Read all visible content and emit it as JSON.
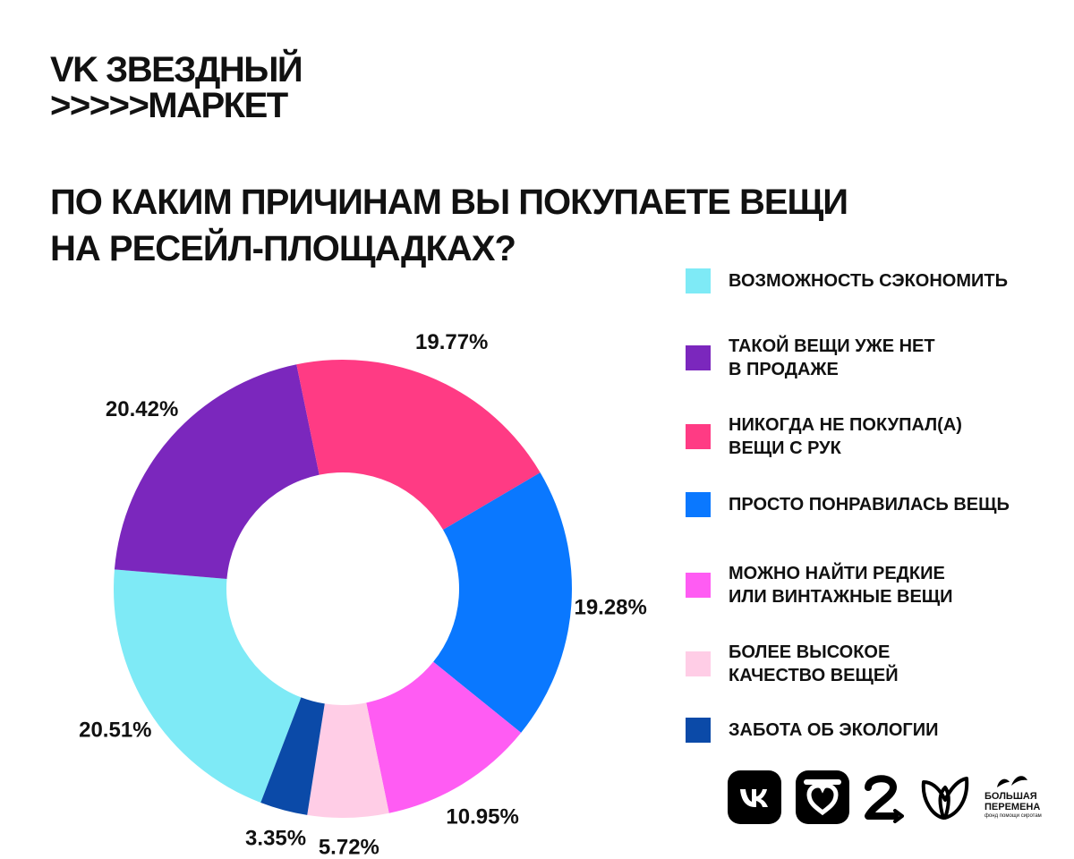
{
  "brand": {
    "line1": "VK ЗВЕЗДНЫЙ",
    "line2": ">>>>>МАРКЕТ"
  },
  "question": {
    "line1": "ПО КАКИМ ПРИЧИНАМ ВЫ ПОКУПАЕТЕ ВЕЩИ",
    "line2": "НА РЕСЕЙЛ-ПЛОЩАДКАХ?"
  },
  "chart_data": {
    "type": "pie",
    "donut": true,
    "title": "ПО КАКИМ ПРИЧИНАМ ВЫ ПОКУПАЕТЕ ВЕЩИ НА РЕСЕЙЛ-ПЛОЩАДКАХ?",
    "legend_position": "right",
    "slices": [
      {
        "label": [
          "ВОЗМОЖНОСТЬ СЭКОНОМИТЬ"
        ],
        "value": 20.51,
        "value_label": "20.51%",
        "color": "#7eeaf6"
      },
      {
        "label": [
          "ТАКОЙ ВЕЩИ УЖЕ НЕТ",
          "В ПРОДАЖЕ"
        ],
        "value": 20.42,
        "value_label": "20.42%",
        "color": "#7b27bd"
      },
      {
        "label": [
          "НИКОГДА НЕ ПОКУПАЛ(А)",
          "ВЕЩИ С РУК"
        ],
        "value": 19.77,
        "value_label": "19.77%",
        "color": "#ff3b84"
      },
      {
        "label": [
          "ПРОСТО ПОНРАВИЛАСЬ ВЕЩЬ"
        ],
        "value": 19.28,
        "value_label": "19.28%",
        "color": "#0a78ff"
      },
      {
        "label": [
          "МОЖНО НАЙТИ РЕДКИЕ",
          "ИЛИ ВИНТАЖНЫЕ ВЕЩИ"
        ],
        "value": 10.95,
        "value_label": "10.95%",
        "color": "#ff5cf3"
      },
      {
        "label": [
          "БОЛЕЕ ВЫСОКОЕ",
          "КАЧЕСТВО ВЕЩЕЙ"
        ],
        "value": 5.72,
        "value_label": "5.72%",
        "color": "#ffcde6"
      },
      {
        "label": [
          "ЗАБОТА ОБ ЭКОЛОГИИ"
        ],
        "value": 3.35,
        "value_label": "3.35%",
        "color": "#0b4aa8"
      }
    ]
  },
  "logos": {
    "items": [
      "vk-logo",
      "odnoklassniki-logo",
      "dobro-logo",
      "heart-butterfly-logo",
      "bolshaya-peremena-logo"
    ],
    "bolshaya_peremena_line1": "БОЛЬШАЯ",
    "bolshaya_peremena_line2": "ПЕРЕМЕНА",
    "bolshaya_peremena_tagline": "фонд помощи сиротам"
  }
}
